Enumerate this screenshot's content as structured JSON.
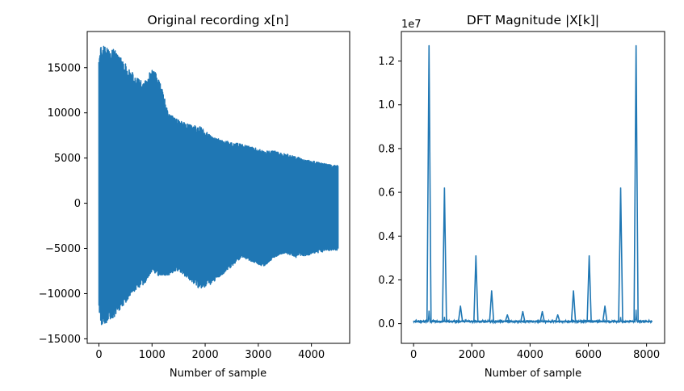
{
  "chart_data": [
    {
      "type": "line",
      "title": "Original recording x[n]",
      "xlabel": "Number of sample",
      "ylabel": "",
      "xlim": [
        -220,
        4720
      ],
      "ylim": [
        -15500,
        19000
      ],
      "xticks": [
        0,
        1000,
        2000,
        3000,
        4000
      ],
      "xtick_labels": [
        "0",
        "1000",
        "2000",
        "3000",
        "4000"
      ],
      "yticks": [
        -15000,
        -10000,
        -5000,
        0,
        5000,
        10000,
        15000
      ],
      "ytick_labels": [
        "−15000",
        "−10000",
        "−5000",
        "0",
        "5000",
        "10000",
        "15000"
      ],
      "grid": false,
      "color": "#1f77b4",
      "series": [
        {
          "envelope_x": [
            0,
            50,
            150,
            300,
            500,
            700,
            850,
            1000,
            1100,
            1200,
            1300,
            1500,
            1700,
            1900,
            2100,
            2300,
            2500,
            2700,
            2900,
            3100,
            3300,
            3500,
            3700,
            3900,
            4100,
            4300,
            4500
          ],
          "envelope_upper": [
            16800,
            17500,
            17400,
            17000,
            15500,
            14000,
            13300,
            15000,
            14200,
            12500,
            10000,
            9200,
            8700,
            8500,
            7500,
            7000,
            6800,
            6500,
            6200,
            5800,
            5800,
            5500,
            5200,
            4800,
            4600,
            4300,
            4200
          ],
          "envelope_lower": [
            -12000,
            -13500,
            -13200,
            -12500,
            -11000,
            -9500,
            -9000,
            -7500,
            -8000,
            -8000,
            -8000,
            -7500,
            -8500,
            -9500,
            -9000,
            -8000,
            -7000,
            -6000,
            -6500,
            -7000,
            -6000,
            -5500,
            -6000,
            -5800,
            -5500,
            -5300,
            -5200
          ]
        }
      ]
    },
    {
      "type": "line",
      "title": "DFT Magnitude |X[k]|",
      "xlabel": "Number of sample",
      "ylabel": "",
      "offset_label": "1e7",
      "xlim": [
        -420,
        8620
      ],
      "ylim": [
        -0.09,
        1.335
      ],
      "xticks": [
        0,
        2000,
        4000,
        6000,
        8000
      ],
      "xtick_labels": [
        "0",
        "2000",
        "4000",
        "6000",
        "8000"
      ],
      "yticks": [
        0.0,
        0.2,
        0.4,
        0.6,
        0.8,
        1.0,
        1.2
      ],
      "ytick_labels": [
        "0.0",
        "0.2",
        "0.4",
        "0.6",
        "0.8",
        "1.0",
        "1.2"
      ],
      "grid": false,
      "color": "#1f77b4",
      "series": [
        {
          "baseline": 0.01,
          "peaks_x": [
            530,
            1060,
            1610,
            2140,
            2680,
            3220,
            3750,
            4420,
            4950,
            5490,
            6030,
            6570,
            7110,
            7640
          ],
          "peaks_y": [
            1.27,
            0.62,
            0.08,
            0.31,
            0.15,
            0.04,
            0.055,
            0.055,
            0.04,
            0.15,
            0.31,
            0.08,
            0.62,
            1.27
          ]
        }
      ]
    }
  ]
}
